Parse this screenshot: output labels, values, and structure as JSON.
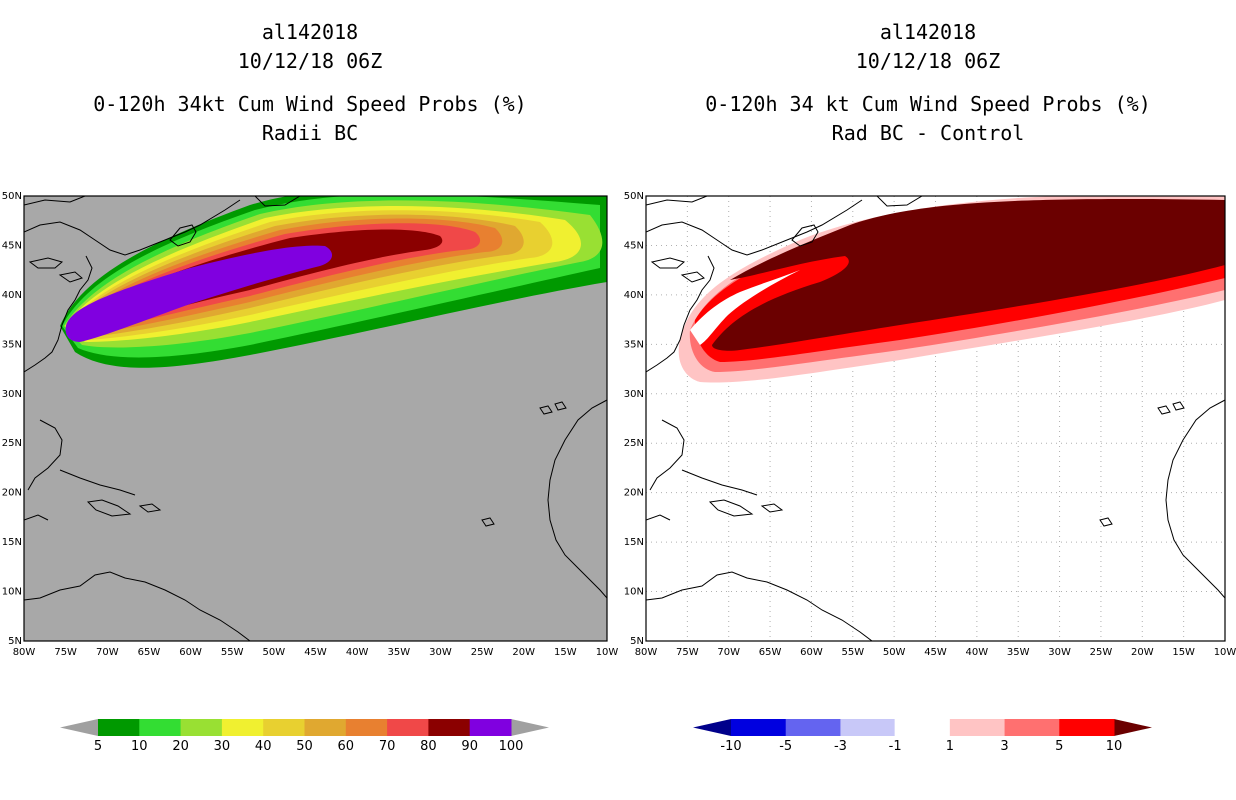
{
  "left": {
    "storm_id": "al142018",
    "datetime": "10/12/18 06Z",
    "title": "0-120h 34kt Cum Wind Speed Probs (%)",
    "subtitle": "Radii BC"
  },
  "right": {
    "storm_id": "al142018",
    "datetime": "10/12/18 06Z",
    "title": "0-120h 34 kt Cum Wind Speed Probs (%)",
    "subtitle": "Rad BC - Control"
  },
  "axes": {
    "lat_labels": [
      "50N",
      "45N",
      "40N",
      "35N",
      "30N",
      "25N",
      "20N",
      "15N",
      "10N",
      "5N"
    ],
    "lon_labels": [
      "80W",
      "75W",
      "70W",
      "65W",
      "60W",
      "55W",
      "50W",
      "45W",
      "40W",
      "35W",
      "30W",
      "25W",
      "20W",
      "15W",
      "10W"
    ],
    "lat_range": [
      5,
      50
    ],
    "lon_range": [
      -80,
      -10
    ]
  },
  "colorbars": {
    "left": {
      "labels": [
        "5",
        "10",
        "20",
        "30",
        "40",
        "50",
        "60",
        "70",
        "80",
        "90",
        "100"
      ],
      "colors": [
        "#009900",
        "#33dd33",
        "#99e033",
        "#f0f030",
        "#e8d030",
        "#e0a830",
        "#e88030",
        "#f04848",
        "#8b0000",
        "#8000e0"
      ],
      "extend_color": "#a0a0a0"
    },
    "right": {
      "labels": [
        "-10",
        "-5",
        "-3",
        "-1",
        "1",
        "3",
        "5",
        "10"
      ],
      "colors": [
        "#0000e0",
        "#6464f0",
        "#c8c8f8",
        "#ffffff",
        "#ffc4c4",
        "#ff7070",
        "#ff0000"
      ],
      "extend_low": "#00008b",
      "extend_high": "#6b0000"
    }
  }
}
